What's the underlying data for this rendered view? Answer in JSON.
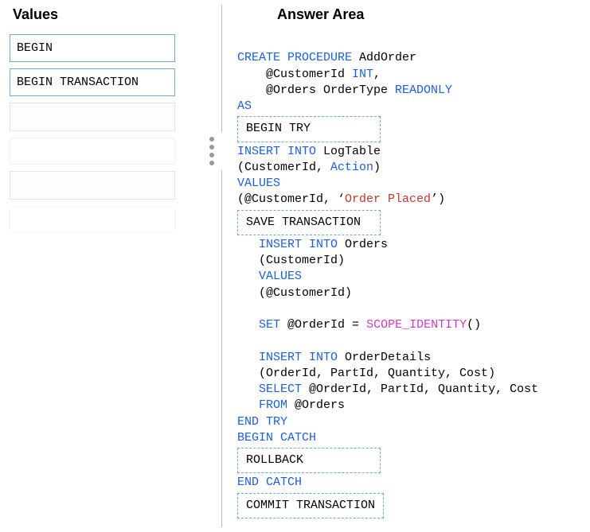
{
  "headers": {
    "values": "Values",
    "answer": "Answer Area"
  },
  "tiles": {
    "t1": "BEGIN",
    "t2": "BEGIN TRANSACTION"
  },
  "colors": {
    "keyword": "#1b5fd9",
    "function": "#c83cc8",
    "string": "#c0392b",
    "tile_border": "#6fa8dc",
    "divider": "#b9b9b9",
    "dot": "#9a9a9a"
  },
  "code": {
    "l1a": "CREATE PROCEDURE",
    "l1b": " AddOrder",
    "l2a": "    @CustomerId ",
    "l2b": "INT",
    "l2c": ",",
    "l3a": "    @Orders OrderType ",
    "l3b": "READONLY",
    "l4": "AS",
    "slot1": "BEGIN TRY",
    "l5a": "INSERT INTO",
    "l5b": " LogTable",
    "l6a": "(CustomerId, ",
    "l6b": "Action",
    "l6c": ")",
    "l7": "VALUES",
    "l8a": "(@CustomerId, ‘",
    "l8b": "Order Placed",
    "l8c": "’)",
    "slot2": "SAVE TRANSACTION",
    "l9a": "INSERT",
    "l9b": " INTO",
    "l9c": " Orders",
    "l10": "(CustomerId)",
    "l11": "VALUES",
    "l12": "(@CustomerId)",
    "l13a": "SET",
    "l13b": " @OrderId = ",
    "l13c": "SCOPE_IDENTITY",
    "l13d": "()",
    "l14a": "INSERT INTO",
    "l14b": " OrderDetails",
    "l15": "(OrderId, PartId, Quantity, Cost)",
    "l16a": "SELECT",
    "l16b": " @OrderId, PartId, Quantity, Cost",
    "l17a": "FROM",
    "l17b": " @Orders",
    "l18": "END TRY",
    "l19": "BEGIN CATCH",
    "slot3": "ROLLBACK",
    "l20": "END CATCH",
    "slot4": "COMMIT TRANSACTION"
  }
}
